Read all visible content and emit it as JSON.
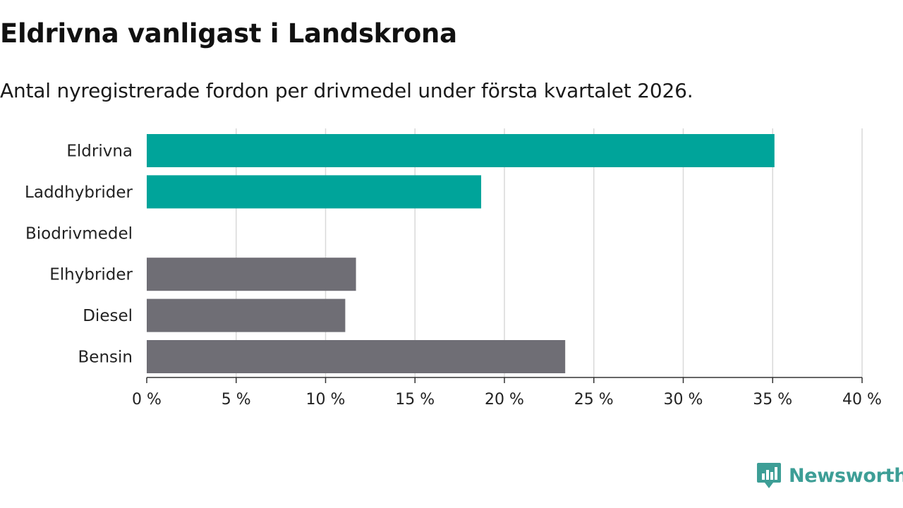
{
  "title": "Eldrivna vanligast i Landskrona",
  "subtitle": "Antal nyregistrerade fordon per drivmedel under första kvartalet 2026.",
  "colors": {
    "highlight": "#00a49a",
    "default": "#6f6e75",
    "grid": "#d9d9d9",
    "axis": "#333333"
  },
  "brand": {
    "name": "Newsworthy",
    "icon": "chart-bubble-icon"
  },
  "chart_data": {
    "type": "bar",
    "orientation": "horizontal",
    "categories": [
      "Eldrivna",
      "Laddhybrider",
      "Biodrivmedel",
      "Elhybrider",
      "Diesel",
      "Bensin"
    ],
    "values": [
      35.1,
      18.7,
      0,
      11.7,
      11.1,
      23.4
    ],
    "highlighted": [
      true,
      true,
      false,
      false,
      false,
      false
    ],
    "xlim": [
      0,
      40
    ],
    "xticks": [
      0,
      5,
      10,
      15,
      20,
      25,
      30,
      35,
      40
    ],
    "xtick_labels": [
      "0 %",
      "5 %",
      "10 %",
      "15 %",
      "20 %",
      "25 %",
      "30 %",
      "35 %",
      "40 %"
    ],
    "xlabel": "",
    "ylabel": "",
    "grid": true
  }
}
